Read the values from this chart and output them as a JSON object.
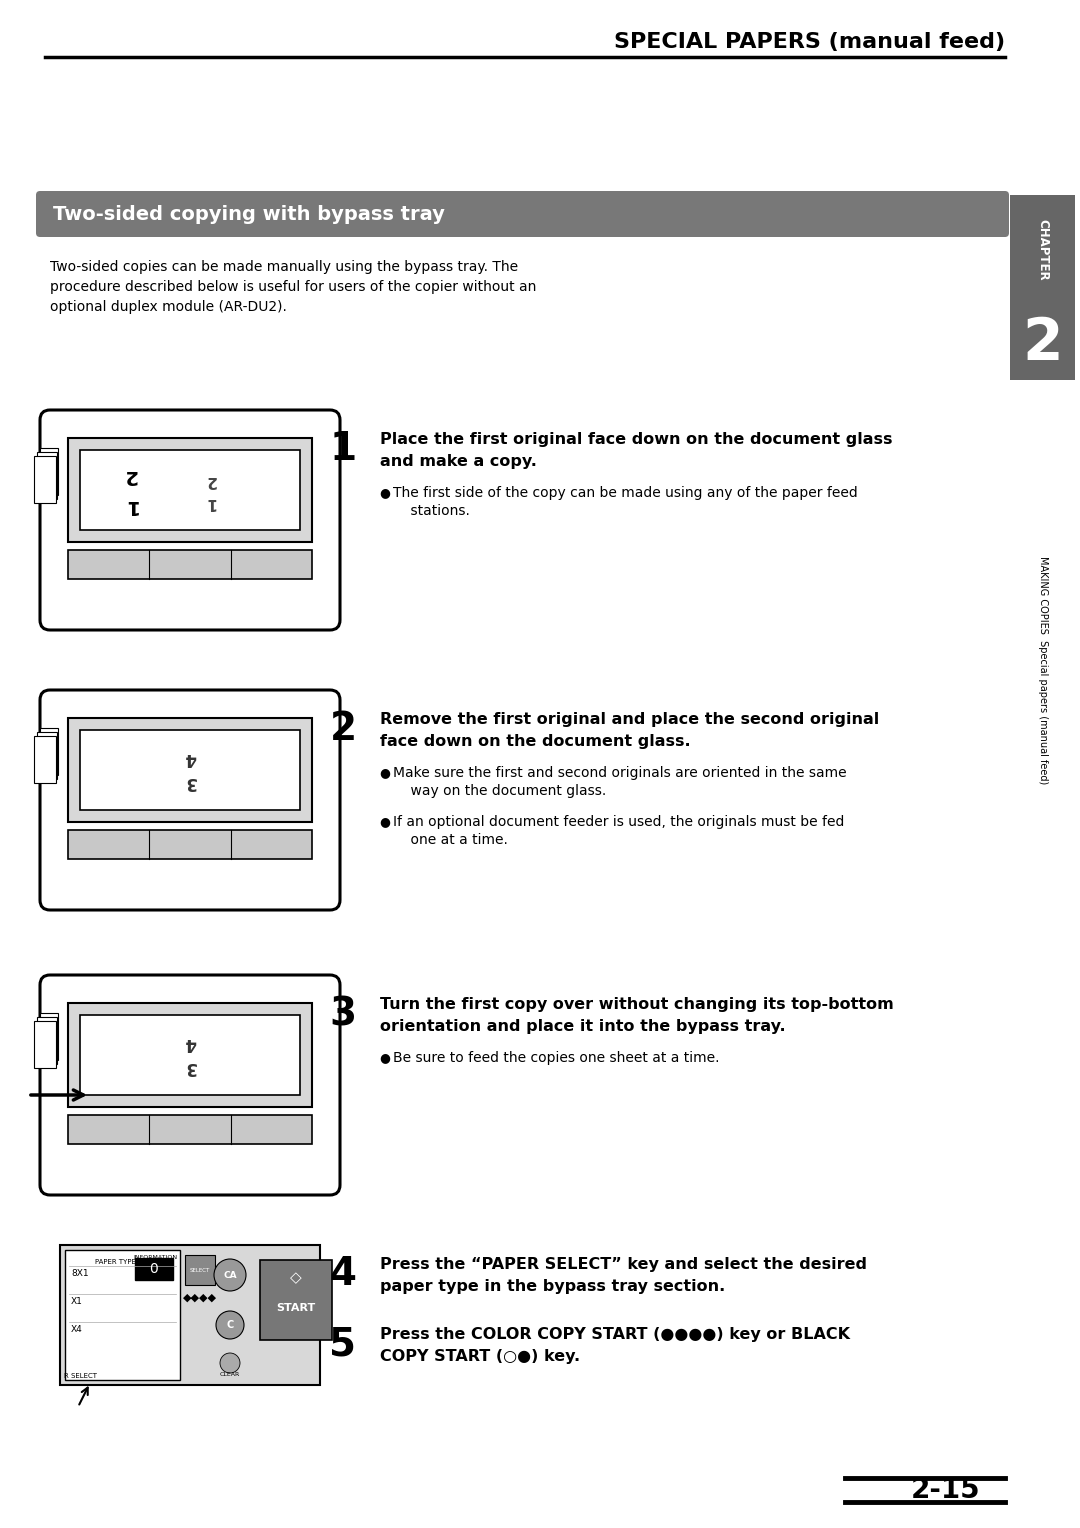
{
  "title": "SPECIAL PAPERS (manual feed)",
  "section_title": "Two-sided copying with bypass tray",
  "section_bg": "#787878",
  "intro_text": "Two-sided copies can be made manually using the bypass tray. The\nprocedure described below is useful for users of the copier without an\noptional duplex module (AR-DU2).",
  "steps": [
    {
      "num": "1",
      "bold_line1": "Place the first original face down on the document glass",
      "bold_line2": "and make a copy.",
      "bullets": [
        "The first side of the copy can be made using any of the paper feed\n    stations."
      ]
    },
    {
      "num": "2",
      "bold_line1": "Remove the first original and place the second original",
      "bold_line2": "face down on the document glass.",
      "bullets": [
        "Make sure the first and second originals are oriented in the same\n    way on the document glass.",
        "If an optional document feeder is used, the originals must be fed\n    one at a time."
      ]
    },
    {
      "num": "3",
      "bold_line1": "Turn the first copy over without changing its top-bottom",
      "bold_line2": "orientation and place it into the bypass tray.",
      "bullets": [
        "Be sure to feed the copies one sheet at a time."
      ]
    },
    {
      "num": "4",
      "bold_line1": "Press the “PAPER SELECT” key and select the desired",
      "bold_line2": "paper type in the bypass tray section.",
      "bullets": []
    },
    {
      "num": "5",
      "bold_line1": "Press the COLOR COPY START (●●●●) key or BLACK",
      "bold_line2": "COPY START (○●) key.",
      "bullets": []
    }
  ],
  "sidebar_chapter": "CHAPTER",
  "sidebar_num": "2",
  "sidebar_body": "MAKING COPIES  Special papers (manual feed)",
  "page_num": "2-15",
  "bg_color": "#ffffff"
}
